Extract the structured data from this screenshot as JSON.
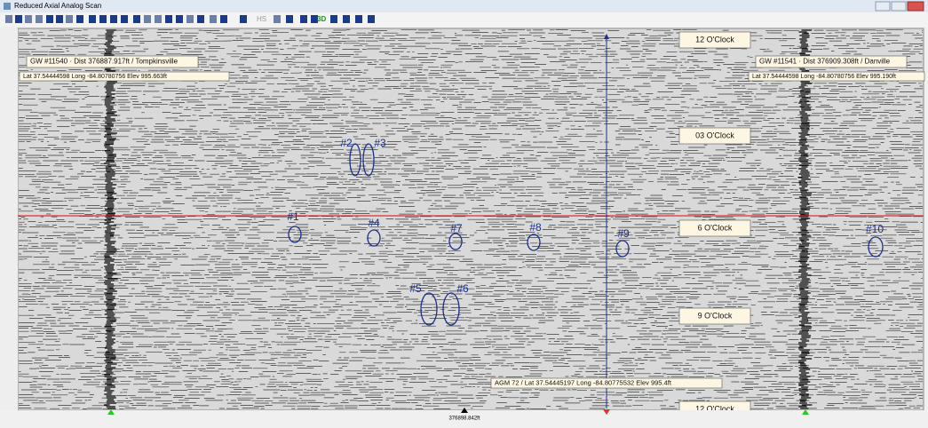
{
  "window": {
    "title": "Reduced Axial Analog Scan"
  },
  "toolbar": {
    "labels": [
      "HS",
      "3D"
    ]
  },
  "left_weld": {
    "name": "GW #11540 · Dist 376887.917ft / Tompkinsville",
    "coords": "Lat 37.54444598 Long -84.80780756 Elev 995.663ft"
  },
  "right_weld": {
    "name": "GW #11541 · Dist 376909.308ft / Danville",
    "coords": "Lat 37.54444598 Long -84.80780756 Elev 995.190ft"
  },
  "clock_labels": [
    "12 O'Clock",
    "03 O'Clock",
    "6 O'Clock",
    "9 O'Clock",
    "12 O'Clock"
  ],
  "anomalies": [
    "#1",
    "#2",
    "#3",
    "#4",
    "#5",
    "#6",
    "#7",
    "#8",
    "#9",
    "#10"
  ],
  "agm": "AGM 72 / Lat 37.54445197 Long -84.80775532 Elev 995.4ft",
  "cursor_distance": "376898.842ft"
}
